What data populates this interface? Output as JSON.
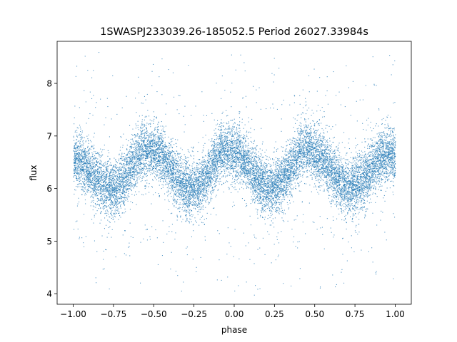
{
  "chart_data": {
    "type": "scatter",
    "title": "1SWASPJ233039.26-185052.5 Period 26027.33984s",
    "xlabel": "phase",
    "ylabel": "flux",
    "xlim": [
      -1.1,
      1.1
    ],
    "ylim": [
      3.8,
      8.8
    ],
    "xticks": [
      -1.0,
      -0.75,
      -0.5,
      -0.25,
      0.0,
      0.25,
      0.5,
      0.75,
      1.0
    ],
    "xtick_labels": [
      "−1.00",
      "−0.75",
      "−0.50",
      "−0.25",
      "0.00",
      "0.25",
      "0.50",
      "0.75",
      "1.00"
    ],
    "yticks": [
      4,
      5,
      6,
      7,
      8
    ],
    "ytick_labels": [
      "4",
      "5",
      "6",
      "7",
      "8"
    ],
    "grid": false,
    "legend": "none",
    "series": [
      {
        "marker_color": "#1f77b4",
        "description_points": {
          "phase": [
            -1.0,
            -0.75,
            -0.55,
            -0.5,
            -0.28,
            -0.25,
            -0.05,
            0.0,
            0.22,
            0.25,
            0.45,
            0.5,
            0.72,
            0.75,
            0.95,
            1.0
          ],
          "mean_flux": [
            6.55,
            6.0,
            6.75,
            6.7,
            6.0,
            6.0,
            6.75,
            6.65,
            6.0,
            6.05,
            6.75,
            6.65,
            6.0,
            6.1,
            6.65,
            6.6
          ]
        }
      }
    ]
  }
}
